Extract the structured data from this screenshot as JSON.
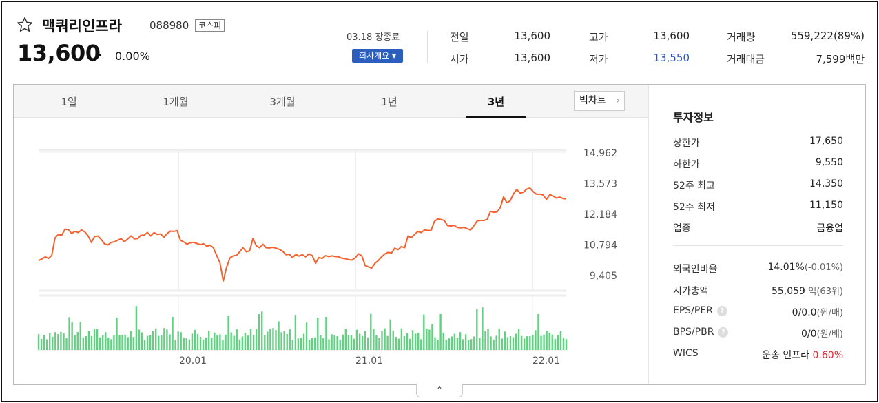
{
  "stock": {
    "name": "맥쿼리인프라",
    "code": "088980",
    "market": "코스피",
    "price": "13,600",
    "change_dash": "–",
    "change_pct": "0.00%"
  },
  "status": {
    "date": "03.18 장종료",
    "company_button": "회사개요 ▾"
  },
  "quote": {
    "prev_label": "전일",
    "prev_value": "13,600",
    "open_label": "시가",
    "open_value": "13,600",
    "high_label": "고가",
    "high_value": "13,600",
    "low_label": "저가",
    "low_value": "13,550",
    "volume_label": "거래량",
    "volume_value": "559,222(89%)",
    "amount_label": "거래대금",
    "amount_value": "7,599백만"
  },
  "tabs": {
    "t1": "1일",
    "t2": "1개월",
    "t3": "3개월",
    "t4": "1년",
    "t5": "3년",
    "big_chart": "빅차트",
    "big_chart_chevron": "›"
  },
  "info": {
    "title": "투자정보",
    "upper_limit_label": "상한가",
    "upper_limit_value": "17,650",
    "lower_limit_label": "하한가",
    "lower_limit_value": "9,550",
    "high52_label": "52주 최고",
    "high52_value": "14,350",
    "low52_label": "52주 최저",
    "low52_value": "11,150",
    "industry_label": "업종",
    "industry_value": "금융업",
    "foreign_label": "외국인비율",
    "foreign_value": "14.01%",
    "foreign_change": "(-0.01%)",
    "mktcap_label": "시가총액",
    "mktcap_value": "55,059",
    "mktcap_unit": "억(63위)",
    "eps_label": "EPS/PER",
    "eps_value": "0/0.0",
    "eps_unit": "(원/배)",
    "bps_label": "BPS/PBR",
    "bps_value": "0/0",
    "bps_unit": "(원/배)",
    "wics_label": "WICS",
    "wics_value": "운송 인프라",
    "wics_pct": "0.60%",
    "help_icon": "?"
  },
  "collapse_label": "⌃",
  "colors": {
    "line": "#f4612e",
    "volume": "#5fd27f",
    "blue": "#2a55c8",
    "red": "#e0262d"
  },
  "chart_data": {
    "type": "line",
    "period": "3y",
    "y_ticks": [
      "14,962",
      "13,573",
      "12,184",
      "10,794",
      "9,405"
    ],
    "ylim": [
      9405,
      14962
    ],
    "x_ticks": [
      "20.01",
      "21.01",
      "22.01"
    ],
    "price_series": [
      10700,
      10770,
      10860,
      10790,
      10920,
      11670,
      11820,
      11780,
      12040,
      12030,
      11860,
      11950,
      11900,
      12010,
      11930,
      11760,
      11480,
      11730,
      11750,
      11600,
      11410,
      11370,
      11480,
      11500,
      11570,
      11640,
      11510,
      11620,
      11760,
      11630,
      11640,
      11780,
      11790,
      11900,
      11750,
      11900,
      11820,
      11840,
      11700,
      11860,
      11960,
      11950,
      11980,
      11570,
      11500,
      11400,
      11460,
      11480,
      11430,
      11380,
      11420,
      11310,
      11360,
      11250,
      10920,
      10600,
      9820,
      10410,
      10810,
      10900,
      10920,
      11080,
      11250,
      11070,
      11120,
      11640,
      11330,
      11250,
      11400,
      11250,
      11240,
      11270,
      11230,
      11180,
      11100,
      10950,
      10970,
      10830,
      10960,
      10890,
      10950,
      10860,
      10990,
      10910,
      10580,
      10830,
      10790,
      10910,
      10870,
      10900,
      10870,
      10860,
      10800,
      10780,
      10740,
      10720,
      10810,
      10990,
      10900,
      10490,
      10430,
      10380,
      10580,
      10700,
      10860,
      10980,
      11050,
      11020,
      11230,
      11170,
      11300,
      11250,
      11750,
      11680,
      11820,
      11950,
      11900,
      12010,
      11990,
      11990,
      12370,
      12490,
      12460,
      12420,
      12200,
      12180,
      12210,
      12120,
      12100,
      12120,
      12060,
      12010,
      12190,
      12400,
      12420,
      12420,
      12460,
      12810,
      12770,
      12780,
      12970,
      13430,
      13180,
      13260,
      13560,
      13750,
      13590,
      13630,
      13760,
      13810,
      13650,
      13540,
      13550,
      13510,
      13320,
      13530,
      13470,
      13380,
      13420,
      13360,
      13340
    ]
  }
}
